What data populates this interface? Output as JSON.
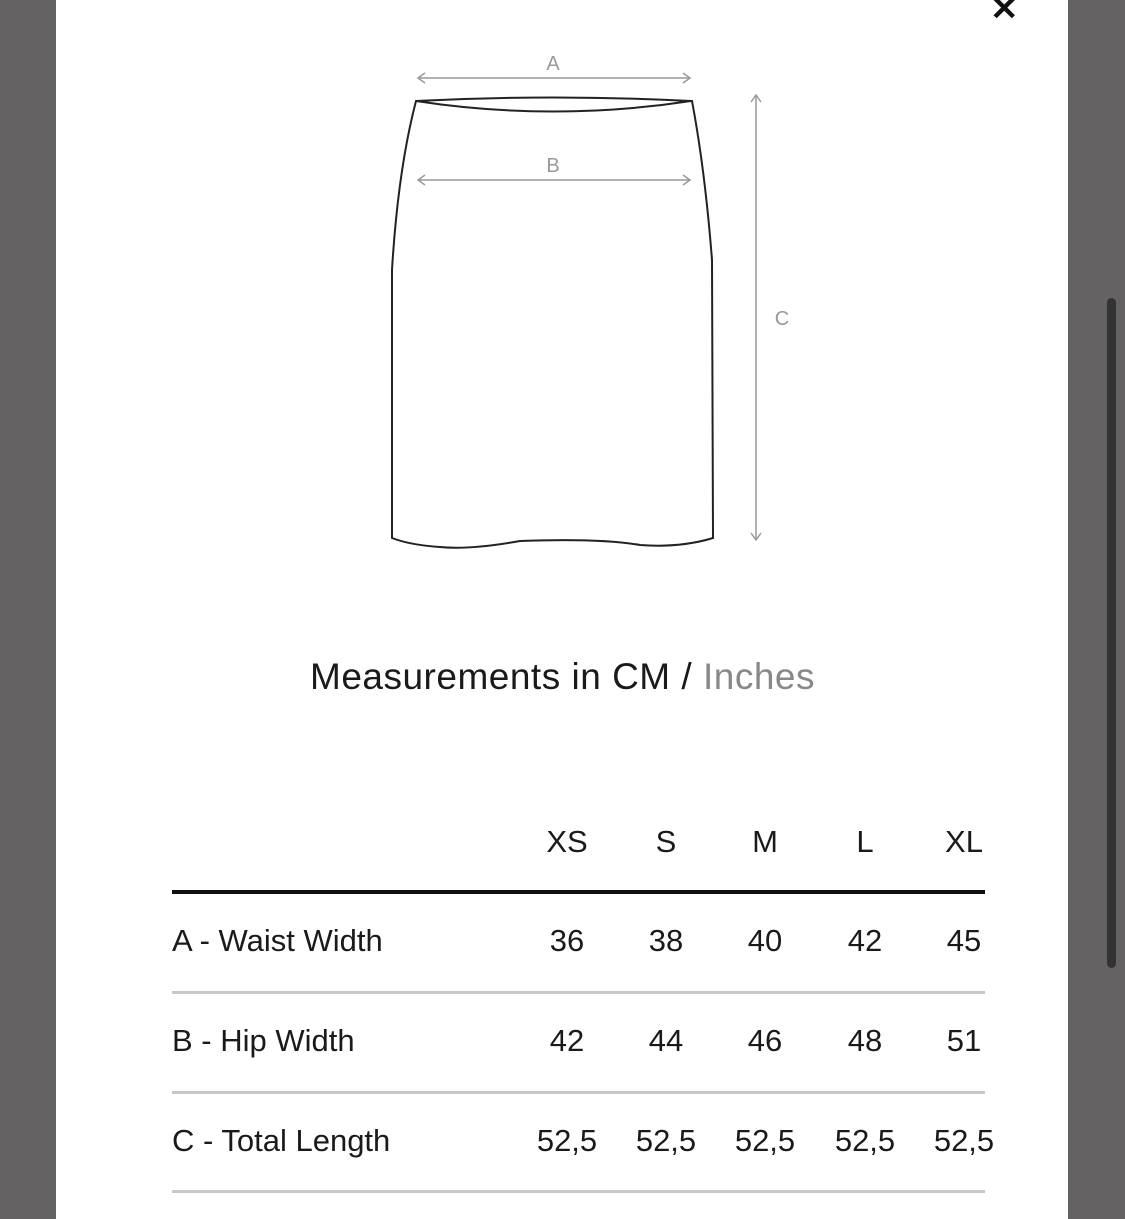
{
  "modal": {
    "close_icon": "close-icon"
  },
  "diagram": {
    "labels": {
      "a": "A",
      "b": "B",
      "c": "C"
    }
  },
  "heading": {
    "prefix": "Measurements in",
    "active_unit": "CM",
    "separator": "/",
    "alt_unit": "Inches"
  },
  "table": {
    "sizes": [
      "XS",
      "S",
      "M",
      "L",
      "XL"
    ],
    "rows": [
      {
        "label": "A - Waist Width",
        "values": [
          "36",
          "38",
          "40",
          "42",
          "45"
        ]
      },
      {
        "label": "B - Hip Width",
        "values": [
          "42",
          "44",
          "46",
          "48",
          "51"
        ]
      },
      {
        "label": "C - Total Length",
        "values": [
          "52,5",
          "52,5",
          "52,5",
          "52,5",
          "52,5"
        ]
      }
    ]
  },
  "colors": {
    "backdrop": "#646262",
    "panel": "#ffffff",
    "muted": "#888888"
  }
}
